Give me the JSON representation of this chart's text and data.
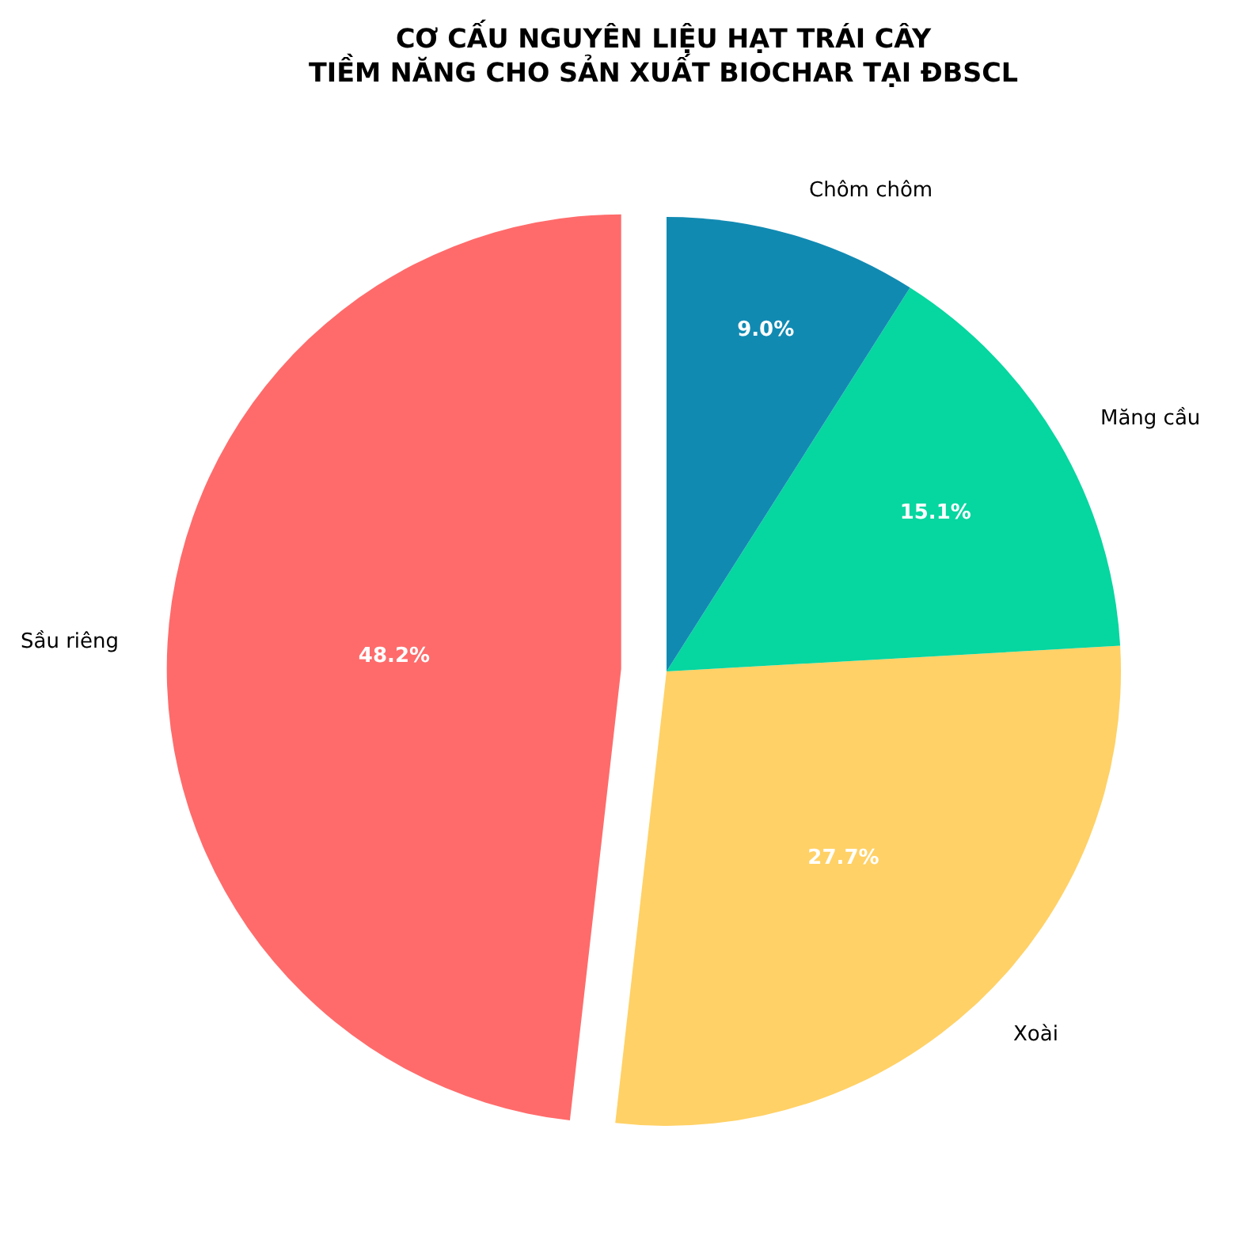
{
  "chart_data": {
    "type": "pie",
    "title": "CƠ CẤU NGUYÊN LIỆU HẠT TRÁI CÂY\nTIỀM NĂNG CHO SẢN XUẤT BIOCHAR TẠI ĐBSCL",
    "categories": [
      "Sầu riêng",
      "Xoài",
      "Măng cầu",
      "Chôm chôm"
    ],
    "values": [
      48.2,
      27.7,
      15.1,
      9.0
    ],
    "colors": [
      "#ff6b6b",
      "#ffd166",
      "#06d6a0",
      "#118ab2"
    ],
    "value_labels": [
      "48.2%",
      "27.7%",
      "15.1%",
      "9.0%"
    ]
  }
}
